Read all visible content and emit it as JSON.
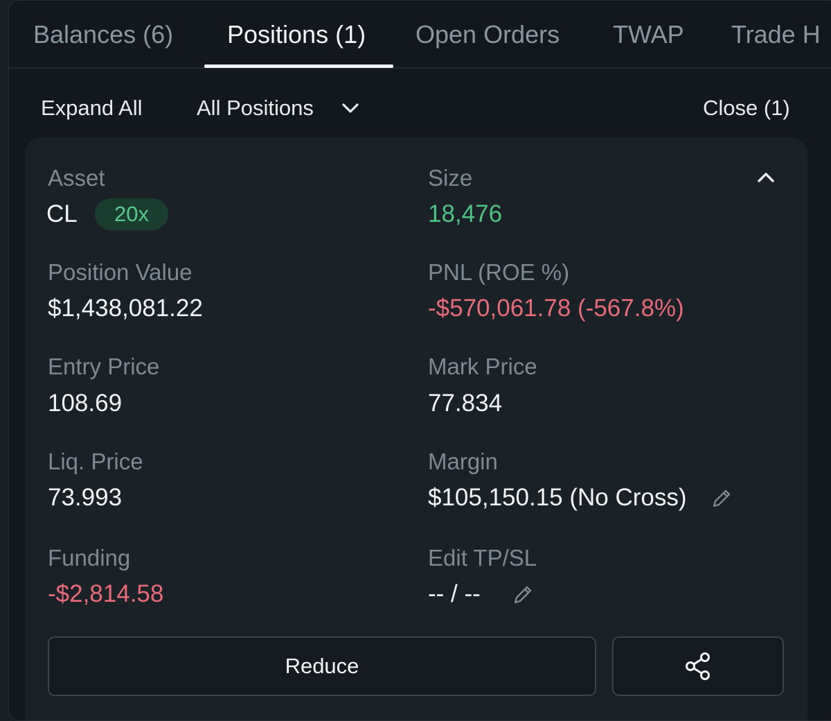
{
  "tabs": [
    {
      "label": "Balances (6)"
    },
    {
      "label": "Positions (1)"
    },
    {
      "label": "Open Orders"
    },
    {
      "label": "TWAP"
    },
    {
      "label": "Trade H"
    }
  ],
  "active_tab": "Positions (1)",
  "toolbar": {
    "expand_all": "Expand All",
    "filter_selected": "All Positions",
    "close_label": "Close (1)"
  },
  "position": {
    "asset_label": "Asset",
    "asset": "CL",
    "leverage": "20x",
    "size_label": "Size",
    "size": "18,476",
    "position_value_label": "Position Value",
    "position_value": "$1,438,081.22",
    "pnl_label": "PNL (ROE %)",
    "pnl": "-$570,061.78 (-567.8%)",
    "entry_price_label": "Entry Price",
    "entry_price": "108.69",
    "mark_price_label": "Mark Price",
    "mark_price": "77.834",
    "liq_price_label": "Liq. Price",
    "liq_price": "73.993",
    "margin_label": "Margin",
    "margin": "$105,150.15 (No Cross)",
    "funding_label": "Funding",
    "funding": "-$2,814.58",
    "tpsl_label": "Edit TP/SL",
    "tpsl": "-- / --"
  },
  "actions": {
    "reduce_label": "Reduce"
  },
  "colors": {
    "positive": "#4fc383",
    "negative": "#e96a78",
    "background": "#12181d",
    "card": "#1a2127"
  }
}
